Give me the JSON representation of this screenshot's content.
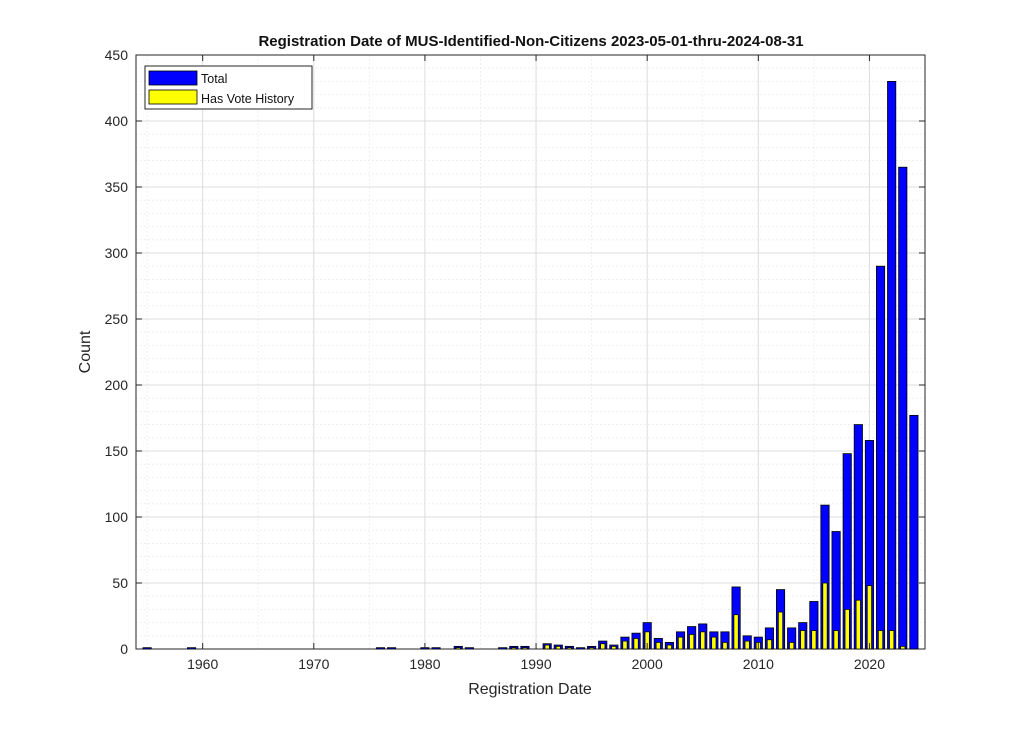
{
  "chart_data": {
    "type": "bar",
    "title": "Registration Date of MUS-Identified-Non-Citizens 2023-05-01-thru-2024-08-31",
    "xlabel": "Registration Date",
    "ylabel": "Count",
    "xlim": [
      1954,
      2025
    ],
    "ylim": [
      0,
      450
    ],
    "xticks": [
      1960,
      1970,
      1980,
      1990,
      2000,
      2010,
      2020
    ],
    "yticks": [
      0,
      50,
      100,
      150,
      200,
      250,
      300,
      350,
      400,
      450
    ],
    "grid": true,
    "minor_grid": true,
    "legend_position": "top-left",
    "colors": {
      "Total": "#0000ff",
      "Has Vote History": "#ffff00",
      "edge": "#000000"
    },
    "x": [
      1955,
      1959,
      1976,
      1977,
      1980,
      1981,
      1983,
      1984,
      1987,
      1988,
      1989,
      1991,
      1992,
      1993,
      1994,
      1995,
      1996,
      1997,
      1998,
      1999,
      2000,
      2001,
      2002,
      2003,
      2004,
      2005,
      2006,
      2007,
      2008,
      2009,
      2010,
      2011,
      2012,
      2013,
      2014,
      2015,
      2016,
      2017,
      2018,
      2019,
      2020,
      2021,
      2022,
      2023,
      2024
    ],
    "series": [
      {
        "name": "Total",
        "values": [
          1,
          1,
          1,
          1,
          1,
          1,
          2,
          1,
          1,
          2,
          2,
          4,
          3,
          2,
          1,
          2,
          6,
          3,
          9,
          12,
          20,
          8,
          5,
          13,
          17,
          19,
          13,
          13,
          47,
          10,
          9,
          16,
          45,
          16,
          20,
          36,
          109,
          89,
          148,
          170,
          158,
          290,
          430,
          365,
          177
        ]
      },
      {
        "name": "Has Vote History",
        "values": [
          0,
          0,
          0,
          0,
          0,
          0,
          1,
          0,
          0,
          1,
          1,
          3,
          2,
          1,
          0,
          1,
          4,
          2,
          6,
          8,
          13,
          5,
          3,
          9,
          11,
          13,
          9,
          5,
          26,
          6,
          5,
          7,
          28,
          5,
          14,
          14,
          50,
          14,
          30,
          37,
          48,
          14,
          14,
          2,
          0
        ]
      }
    ]
  }
}
